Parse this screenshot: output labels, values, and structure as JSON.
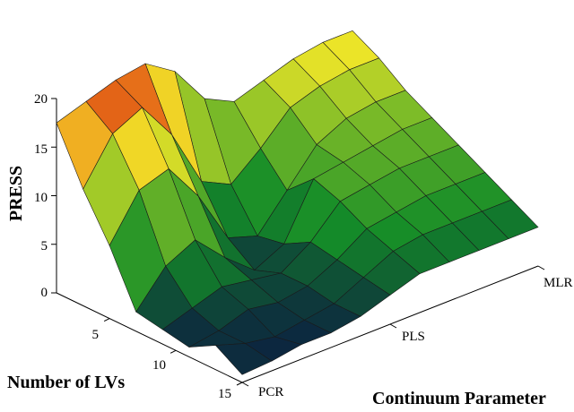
{
  "chart_data": {
    "type": "surface",
    "title": "",
    "zlabel": "PRESS",
    "ylabel": "Number of LVs",
    "xlabel": "Continuum Parameter",
    "z_ticks": [
      "0",
      "5",
      "10",
      "15",
      "20"
    ],
    "lv_ticks": [
      "5",
      "10",
      "15"
    ],
    "param_ticks": [
      "PCR",
      "PLS",
      "MLR"
    ],
    "zlim": [
      0,
      20
    ],
    "lv_range": [
      1,
      15
    ],
    "param_range": [
      0,
      1
    ],
    "colormap": "dark-blue → green → yellow → red",
    "surface_notes": "PRESS surface vs number of latent variables and continuum parameter (PCR→PLS→MLR); high (~17–20) at few LVs near PCR, minimum near mid LVs, rising to plateau (~15) toward MLR",
    "surface": {
      "param": [
        0.0,
        0.1,
        0.2,
        0.3,
        0.4,
        0.5,
        0.6,
        0.7,
        0.8,
        0.9,
        1.0
      ],
      "lv": [
        1,
        3,
        5,
        7,
        9,
        11,
        13,
        15
      ],
      "press": [
        [
          17.5,
          18.5,
          19.5,
          20.0,
          18.0,
          14.0,
          12.5,
          13.5,
          14.5,
          15.0,
          15.0
        ],
        [
          12.0,
          16.5,
          18.0,
          14.0,
          8.0,
          6.5,
          9.0,
          12.0,
          13.0,
          13.5,
          13.5
        ],
        [
          7.5,
          12.0,
          13.0,
          9.0,
          3.5,
          2.5,
          6.0,
          9.5,
          11.0,
          11.5,
          11.5
        ],
        [
          2.0,
          5.5,
          7.0,
          4.0,
          1.5,
          3.0,
          8.5,
          9.0,
          9.5,
          10.0,
          10.0
        ],
        [
          1.5,
          2.5,
          3.5,
          3.0,
          2.5,
          4.5,
          7.5,
          8.0,
          8.5,
          8.5,
          8.5
        ],
        [
          1.0,
          1.5,
          2.5,
          2.0,
          2.5,
          4.0,
          6.0,
          6.5,
          7.0,
          7.0,
          7.0
        ],
        [
          2.5,
          1.5,
          1.0,
          1.5,
          2.0,
          3.5,
          5.0,
          5.5,
          5.5,
          5.5,
          5.5
        ],
        [
          0.8,
          1.0,
          1.5,
          1.5,
          2.0,
          3.0,
          4.0,
          4.0,
          4.0,
          4.0,
          4.0
        ]
      ]
    }
  }
}
